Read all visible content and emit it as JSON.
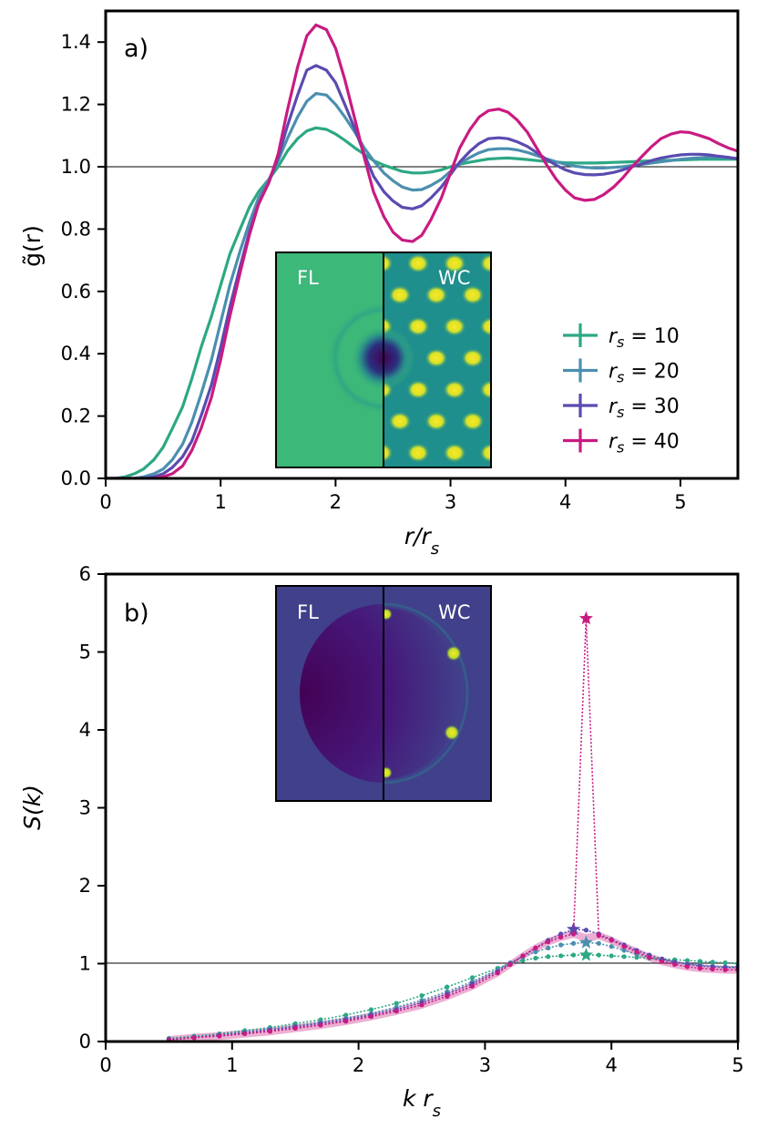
{
  "colors": {
    "rs10": "#2ca884",
    "rs20": "#4b8fae",
    "rs30": "#5a4bb0",
    "rs40": "#c81b82",
    "inset_fl_a": "#3cb878",
    "inset_wc_a_bg": "#1e8f8c",
    "inset_wc_a_spot": "#fde725",
    "inset_b_bg": "#41408a",
    "inset_b_center": "#440154"
  },
  "chart_data": [
    {
      "id": "panel-a",
      "type": "line",
      "panel_label": "a)",
      "xlabel": "r/r_s",
      "ylabel": "g̃(r)",
      "xlim": [
        0,
        5.5
      ],
      "ylim": [
        0,
        1.5
      ],
      "xticks": [
        "0",
        "1",
        "2",
        "3",
        "4",
        "5"
      ],
      "yticks": [
        "0.0",
        "0.2",
        "0.4",
        "0.6",
        "0.8",
        "1.0",
        "1.2",
        "1.4"
      ],
      "reference_line_y": 1.0,
      "x": [
        0.0,
        0.08,
        0.17,
        0.25,
        0.33,
        0.42,
        0.5,
        0.58,
        0.67,
        0.75,
        0.83,
        0.92,
        1.0,
        1.08,
        1.17,
        1.25,
        1.33,
        1.42,
        1.5,
        1.58,
        1.67,
        1.75,
        1.83,
        1.92,
        2.0,
        2.08,
        2.17,
        2.25,
        2.33,
        2.42,
        2.5,
        2.58,
        2.67,
        2.75,
        2.83,
        2.92,
        3.0,
        3.08,
        3.17,
        3.25,
        3.33,
        3.42,
        3.5,
        3.58,
        3.67,
        3.75,
        3.83,
        3.92,
        4.0,
        4.08,
        4.17,
        4.25,
        4.33,
        4.42,
        4.5,
        4.58,
        4.67,
        4.75,
        4.83,
        4.92,
        5.0,
        5.08,
        5.17,
        5.25,
        5.33,
        5.42,
        5.5
      ],
      "series": [
        {
          "name": "r_s = 10",
          "legend": "rs = 10",
          "color_key": "rs10",
          "values": [
            0.0,
            0.0,
            0.005,
            0.015,
            0.03,
            0.06,
            0.1,
            0.16,
            0.23,
            0.32,
            0.42,
            0.52,
            0.62,
            0.72,
            0.8,
            0.87,
            0.92,
            0.96,
            1.0,
            1.05,
            1.09,
            1.115,
            1.125,
            1.12,
            1.105,
            1.085,
            1.06,
            1.04,
            1.02,
            1.005,
            0.995,
            0.985,
            0.98,
            0.98,
            0.983,
            0.99,
            1.0,
            1.008,
            1.015,
            1.02,
            1.025,
            1.027,
            1.028,
            1.026,
            1.023,
            1.02,
            1.017,
            1.015,
            1.013,
            1.012,
            1.012,
            1.012,
            1.013,
            1.014,
            1.015,
            1.016,
            1.018,
            1.019,
            1.02,
            1.021,
            1.022,
            1.023,
            1.024,
            1.024,
            1.024,
            1.024,
            1.024
          ]
        },
        {
          "name": "r_s = 20",
          "legend": "rs = 20",
          "color_key": "rs20",
          "values": [
            0.0,
            0.0,
            0.0,
            0.0,
            0.005,
            0.015,
            0.03,
            0.06,
            0.11,
            0.18,
            0.27,
            0.38,
            0.5,
            0.62,
            0.73,
            0.82,
            0.9,
            0.96,
            1.02,
            1.09,
            1.16,
            1.21,
            1.235,
            1.23,
            1.2,
            1.16,
            1.11,
            1.06,
            1.02,
            0.98,
            0.955,
            0.935,
            0.925,
            0.927,
            0.94,
            0.96,
            0.985,
            1.01,
            1.03,
            1.045,
            1.055,
            1.058,
            1.058,
            1.054,
            1.046,
            1.036,
            1.026,
            1.016,
            1.008,
            1.002,
            0.998,
            0.996,
            0.996,
            0.998,
            1.0,
            1.004,
            1.008,
            1.012,
            1.016,
            1.02,
            1.024,
            1.027,
            1.029,
            1.03,
            1.03,
            1.029,
            1.027
          ]
        },
        {
          "name": "r_s = 30",
          "legend": "rs = 30",
          "color_key": "rs30",
          "values": [
            0.0,
            0.0,
            0.0,
            0.0,
            0.0,
            0.005,
            0.015,
            0.035,
            0.07,
            0.12,
            0.2,
            0.3,
            0.42,
            0.55,
            0.68,
            0.79,
            0.88,
            0.95,
            1.03,
            1.13,
            1.23,
            1.31,
            1.325,
            1.31,
            1.27,
            1.2,
            1.12,
            1.04,
            0.97,
            0.92,
            0.89,
            0.87,
            0.865,
            0.875,
            0.9,
            0.935,
            0.975,
            1.015,
            1.05,
            1.075,
            1.09,
            1.093,
            1.09,
            1.08,
            1.065,
            1.045,
            1.025,
            1.005,
            0.99,
            0.98,
            0.975,
            0.974,
            0.976,
            0.982,
            0.99,
            1.0,
            1.01,
            1.02,
            1.028,
            1.034,
            1.038,
            1.04,
            1.04,
            1.038,
            1.034,
            1.03,
            1.025
          ]
        },
        {
          "name": "r_s = 40",
          "legend": "rs = 40",
          "color_key": "rs40",
          "values": [
            0.0,
            0.0,
            0.0,
            0.0,
            0.0,
            0.0,
            0.005,
            0.015,
            0.04,
            0.09,
            0.16,
            0.26,
            0.38,
            0.52,
            0.66,
            0.78,
            0.88,
            0.95,
            1.04,
            1.18,
            1.32,
            1.42,
            1.455,
            1.44,
            1.38,
            1.28,
            1.15,
            1.03,
            0.92,
            0.84,
            0.79,
            0.765,
            0.76,
            0.78,
            0.83,
            0.9,
            0.98,
            1.06,
            1.12,
            1.16,
            1.18,
            1.185,
            1.175,
            1.15,
            1.11,
            1.06,
            1.01,
            0.96,
            0.925,
            0.9,
            0.892,
            0.895,
            0.91,
            0.935,
            0.965,
            1.0,
            1.035,
            1.065,
            1.09,
            1.105,
            1.112,
            1.11,
            1.1,
            1.09,
            1.075,
            1.06,
            1.05
          ]
        }
      ],
      "inset": {
        "left_label": "FL",
        "right_label": "WC"
      }
    },
    {
      "id": "panel-b",
      "type": "line",
      "panel_label": "b)",
      "xlabel": "k r_s",
      "ylabel": "S(k)",
      "xlim": [
        0,
        5
      ],
      "ylim": [
        0,
        6
      ],
      "xticks": [
        "0",
        "1",
        "2",
        "3",
        "4",
        "5"
      ],
      "yticks": [
        "0",
        "1",
        "2",
        "3",
        "4",
        "5",
        "6"
      ],
      "reference_line_y": 1.0,
      "x": [
        0.5,
        0.7,
        0.9,
        1.1,
        1.3,
        1.5,
        1.7,
        1.9,
        2.1,
        2.3,
        2.5,
        2.7,
        2.9,
        3.1,
        3.2,
        3.3,
        3.4,
        3.5,
        3.6,
        3.7,
        3.8,
        3.9,
        4.0,
        4.1,
        4.2,
        4.3,
        4.4,
        4.5,
        4.6,
        4.7,
        4.8,
        4.9,
        5.0
      ],
      "series": [
        {
          "name": "r_s = 10",
          "color_key": "rs10",
          "values": [
            0.04,
            0.07,
            0.1,
            0.14,
            0.18,
            0.23,
            0.28,
            0.34,
            0.41,
            0.49,
            0.59,
            0.7,
            0.82,
            0.94,
            1.0,
            1.04,
            1.07,
            1.09,
            1.1,
            1.11,
            1.11,
            1.11,
            1.1,
            1.09,
            1.08,
            1.07,
            1.06,
            1.05,
            1.04,
            1.03,
            1.02,
            1.01,
            1.0
          ],
          "peak": {
            "x": 3.8,
            "y": 1.11
          }
        },
        {
          "name": "r_s = 20",
          "color_key": "rs20",
          "values": [
            0.03,
            0.06,
            0.09,
            0.12,
            0.16,
            0.2,
            0.25,
            0.3,
            0.36,
            0.44,
            0.53,
            0.64,
            0.77,
            0.92,
            1.01,
            1.09,
            1.15,
            1.2,
            1.24,
            1.26,
            1.27,
            1.26,
            1.22,
            1.17,
            1.12,
            1.08,
            1.05,
            1.02,
            1.0,
            0.98,
            0.97,
            0.96,
            0.96
          ],
          "peak": {
            "x": 3.8,
            "y": 1.27
          }
        },
        {
          "name": "r_s = 30",
          "color_key": "rs30",
          "values": [
            0.03,
            0.05,
            0.08,
            0.11,
            0.15,
            0.19,
            0.23,
            0.28,
            0.34,
            0.41,
            0.5,
            0.61,
            0.74,
            0.9,
            1.0,
            1.1,
            1.2,
            1.3,
            1.38,
            1.44,
            1.43,
            1.38,
            1.31,
            1.24,
            1.17,
            1.11,
            1.06,
            1.02,
            0.99,
            0.97,
            0.96,
            0.95,
            0.95
          ],
          "peak": {
            "x": 3.7,
            "y": 1.44
          }
        },
        {
          "name": "r_s = 40",
          "color_key": "rs40",
          "values": [
            0.02,
            0.05,
            0.07,
            0.1,
            0.13,
            0.17,
            0.21,
            0.26,
            0.32,
            0.39,
            0.47,
            0.58,
            0.71,
            0.88,
            0.99,
            1.1,
            1.2,
            1.28,
            1.34,
            1.38,
            5.43,
            1.36,
            1.3,
            1.22,
            1.15,
            1.08,
            1.03,
            0.99,
            0.96,
            0.94,
            0.93,
            0.92,
            0.92
          ],
          "peak": {
            "x": 3.8,
            "y": 5.43
          }
        }
      ],
      "inset": {
        "left_label": "FL",
        "right_label": "WC"
      }
    }
  ]
}
